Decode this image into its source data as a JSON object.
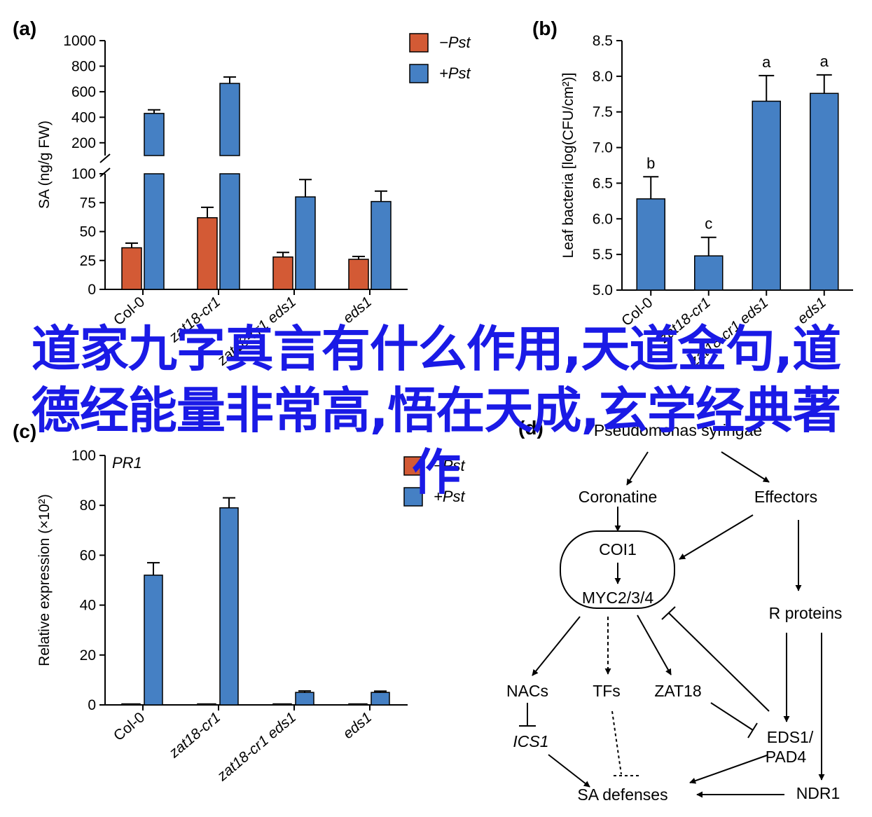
{
  "colors": {
    "minus_pst": "#d35a35",
    "plus_pst": "#4580c4",
    "axis": "#000000",
    "overlay": "#1a1ae6"
  },
  "chart_data": [
    {
      "panel": "a",
      "type": "bar",
      "ylabel": "SA (ng/g FW)",
      "categories": [
        "Col-0",
        "zat18-cr1",
        "zat18-cr1 eds1",
        "eds1"
      ],
      "series": [
        {
          "name": "−Pst",
          "values": [
            36,
            62,
            28,
            26
          ],
          "errors": [
            4,
            9,
            4,
            2.5
          ]
        },
        {
          "name": "+Pst",
          "values": [
            430,
            665,
            80,
            76
          ],
          "errors": [
            28,
            50,
            15,
            9
          ]
        }
      ],
      "ylim_lower": [
        0,
        100
      ],
      "yticks_lower": [
        "0",
        "25",
        "50",
        "75",
        "100"
      ],
      "ylim_upper": [
        100,
        1000
      ],
      "yticks_upper": [
        "200",
        "400",
        "600",
        "800",
        "1000"
      ],
      "axis_break": true,
      "legend": "top-right"
    },
    {
      "panel": "b",
      "type": "bar",
      "ylabel": "Leaf bacteria [log(CFU/cm²)]",
      "categories": [
        "Col-0",
        "zat18-cr1",
        "zat18-cr1 eds1",
        "eds1"
      ],
      "series": [
        {
          "values": [
            6.28,
            5.48,
            7.65,
            7.76
          ],
          "errors": [
            0.31,
            0.26,
            0.36,
            0.26
          ],
          "letters": [
            "b",
            "c",
            "a",
            "a"
          ]
        }
      ],
      "ylim": [
        5.0,
        8.5
      ],
      "yticks": [
        "5.0",
        "5.5",
        "6.0",
        "6.5",
        "7.0",
        "7.5",
        "8.0",
        "8.5"
      ]
    },
    {
      "panel": "c",
      "type": "bar",
      "ylabel": "Relative expression (×10²)",
      "annotation": "PR1",
      "categories": [
        "Col-0",
        "zat18-cr1",
        "zat18-cr1 eds1",
        "eds1"
      ],
      "series": [
        {
          "name": "−Pst",
          "values": [
            0.05,
            0.4,
            0.05,
            0.05
          ],
          "errors": [
            0,
            0,
            0,
            0
          ]
        },
        {
          "name": "+Pst",
          "values": [
            52,
            79,
            5,
            5
          ],
          "errors": [
            5,
            4,
            0.6,
            0.5
          ]
        }
      ],
      "ylim": [
        0,
        100
      ],
      "yticks": [
        "0",
        "20",
        "40",
        "60",
        "80",
        "100"
      ],
      "legend": "top-right"
    }
  ],
  "panel_labels": {
    "a": "a",
    "b": "b",
    "c": "c",
    "d": "d"
  },
  "diagram": {
    "pseudomonas": "Pseudomonas syringae",
    "coronatine": "Coronatine",
    "effectors": "Effectors",
    "coi1": "COI1",
    "myc": "MYC2/3/4",
    "r_proteins": "R proteins",
    "nacs": "NACs",
    "tfs": "TFs",
    "zat18": "ZAT18",
    "ics1": "ICS1",
    "eds1_l1": "EDS1/",
    "eds1_l2": "PAD4",
    "sa_defenses": "SA defenses",
    "ndr1": "NDR1"
  },
  "overlay_title": "道家九字真言有什么作用,天道金句,道德经能量非常高,悟在天成,玄学经典著作"
}
